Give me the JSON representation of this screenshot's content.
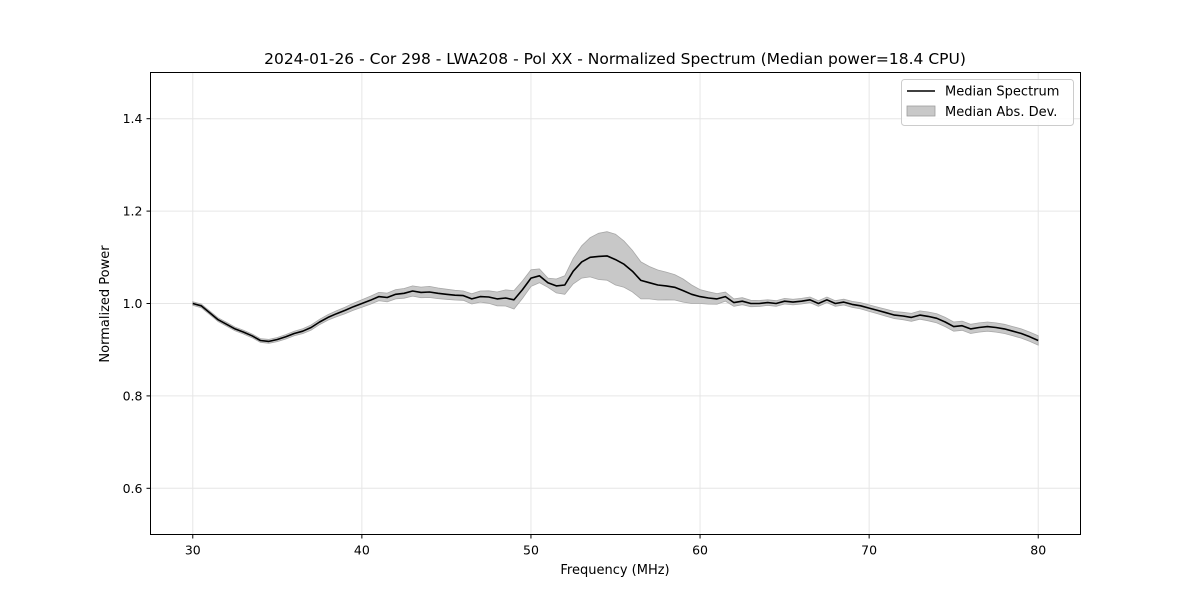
{
  "chart_data": {
    "type": "line",
    "title": "2024-01-26 - Cor 298 - LWA208 - Pol XX - Normalized Spectrum (Median power=18.4 CPU)",
    "xlabel": "Frequency (MHz)",
    "ylabel": "Normalized Power",
    "xlim": [
      27.5,
      82.5
    ],
    "ylim": [
      0.5,
      1.5
    ],
    "xticks": [
      30,
      40,
      50,
      60,
      70,
      80
    ],
    "yticks": [
      0.6,
      0.8,
      1.0,
      1.2,
      1.4
    ],
    "xtick_labels": [
      "30",
      "40",
      "50",
      "60",
      "70",
      "80"
    ],
    "ytick_labels": [
      "0.6",
      "0.8",
      "1.0",
      "1.2",
      "1.4"
    ],
    "grid": true,
    "legend_position": "top-right",
    "legend": [
      "Median Spectrum",
      "Median Abs. Dev."
    ],
    "series": [
      {
        "name": "Median Spectrum",
        "color": "#000000",
        "x": [
          30,
          30.5,
          31,
          31.5,
          32,
          32.5,
          33,
          33.5,
          34,
          34.5,
          35,
          35.5,
          36,
          36.5,
          37,
          37.5,
          38,
          38.5,
          39,
          39.5,
          40,
          40.5,
          41,
          41.5,
          42,
          42.5,
          43,
          43.5,
          44,
          44.5,
          45,
          45.5,
          46,
          46.5,
          47,
          47.5,
          48,
          48.5,
          49,
          49.5,
          50,
          50.5,
          51,
          51.5,
          52,
          52.5,
          53,
          53.5,
          54,
          54.5,
          55,
          55.5,
          56,
          56.5,
          57,
          57.5,
          58,
          58.5,
          59,
          59.5,
          60,
          60.5,
          61,
          61.5,
          62,
          62.5,
          63,
          63.5,
          64,
          64.5,
          65,
          65.5,
          66,
          66.5,
          67,
          67.5,
          68,
          68.5,
          69,
          69.5,
          70,
          70.5,
          71,
          71.5,
          72,
          72.5,
          73,
          73.5,
          74,
          74.5,
          75,
          75.5,
          76,
          76.5,
          77,
          77.5,
          78,
          78.5,
          79,
          79.5,
          80
        ],
        "values": [
          1.0,
          0.995,
          0.98,
          0.965,
          0.955,
          0.945,
          0.938,
          0.93,
          0.92,
          0.918,
          0.922,
          0.928,
          0.935,
          0.94,
          0.948,
          0.96,
          0.97,
          0.978,
          0.985,
          0.993,
          1.0,
          1.007,
          1.015,
          1.013,
          1.02,
          1.022,
          1.027,
          1.024,
          1.025,
          1.022,
          1.02,
          1.018,
          1.017,
          1.01,
          1.015,
          1.014,
          1.01,
          1.012,
          1.008,
          1.03,
          1.055,
          1.06,
          1.045,
          1.038,
          1.04,
          1.07,
          1.09,
          1.1,
          1.102,
          1.103,
          1.095,
          1.085,
          1.07,
          1.05,
          1.045,
          1.04,
          1.038,
          1.035,
          1.028,
          1.02,
          1.015,
          1.012,
          1.01,
          1.015,
          1.002,
          1.005,
          1.0,
          1.0,
          1.002,
          1.0,
          1.005,
          1.003,
          1.005,
          1.008,
          1.0,
          1.008,
          1.0,
          1.003,
          0.998,
          0.995,
          0.99,
          0.985,
          0.98,
          0.975,
          0.973,
          0.97,
          0.975,
          0.972,
          0.968,
          0.96,
          0.95,
          0.952,
          0.945,
          0.948,
          0.95,
          0.948,
          0.945,
          0.94,
          0.935,
          0.928,
          0.92
        ]
      },
      {
        "name": "Median Abs. Dev.",
        "color": "#bfbfbf",
        "x": [
          30,
          32,
          34,
          36,
          38,
          40,
          42,
          44,
          46,
          47,
          48,
          49,
          50,
          50.5,
          51,
          52,
          53,
          54,
          55,
          56,
          57,
          58,
          59,
          60,
          62,
          64,
          66,
          68,
          70,
          72,
          74,
          76,
          78,
          80
        ],
        "mad": [
          0.004,
          0.004,
          0.004,
          0.005,
          0.006,
          0.008,
          0.01,
          0.012,
          0.01,
          0.012,
          0.015,
          0.02,
          0.018,
          0.015,
          0.01,
          0.02,
          0.035,
          0.05,
          0.055,
          0.045,
          0.035,
          0.03,
          0.025,
          0.015,
          0.008,
          0.006,
          0.006,
          0.006,
          0.007,
          0.008,
          0.01,
          0.01,
          0.01,
          0.01
        ]
      }
    ]
  }
}
